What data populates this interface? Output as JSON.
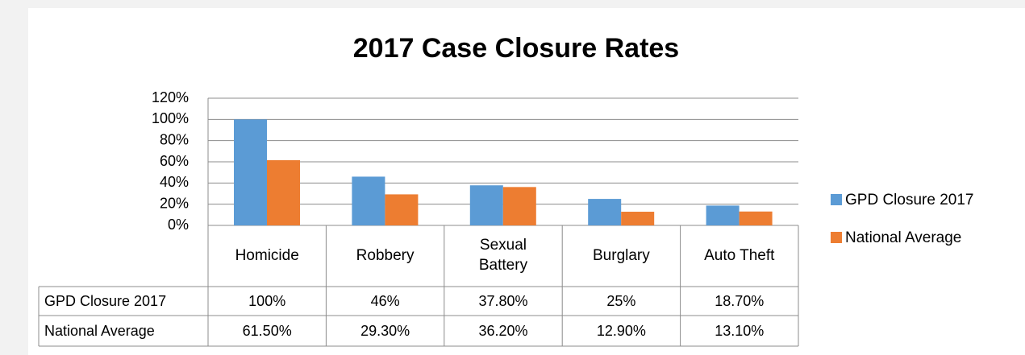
{
  "chart_data": {
    "type": "bar",
    "title": "2017 Case Closure Rates",
    "categories": [
      "Homicide",
      "Robbery",
      "Sexual Battery",
      "Burglary",
      "Auto Theft"
    ],
    "series": [
      {
        "name": "GPD Closure 2017",
        "color": "#5b9bd5",
        "values": [
          100,
          46,
          37.8,
          25,
          18.7
        ],
        "value_labels": [
          "100%",
          "46%",
          "37.80%",
          "25%",
          "18.70%"
        ]
      },
      {
        "name": "National Average",
        "color": "#ed7d31",
        "values": [
          61.5,
          29.3,
          36.2,
          12.9,
          13.1
        ],
        "value_labels": [
          "61.50%",
          "29.30%",
          "36.20%",
          "12.90%",
          "13.10%"
        ]
      }
    ],
    "ylim": [
      0,
      120
    ],
    "yticks": [
      {
        "value": 0,
        "label": "0%"
      },
      {
        "value": 20,
        "label": "20%"
      },
      {
        "value": 40,
        "label": "40%"
      },
      {
        "value": 60,
        "label": "60%"
      },
      {
        "value": 80,
        "label": "80%"
      },
      {
        "value": 100,
        "label": "100%"
      },
      {
        "value": 120,
        "label": "120%"
      }
    ],
    "grid": true,
    "legend": "right"
  }
}
